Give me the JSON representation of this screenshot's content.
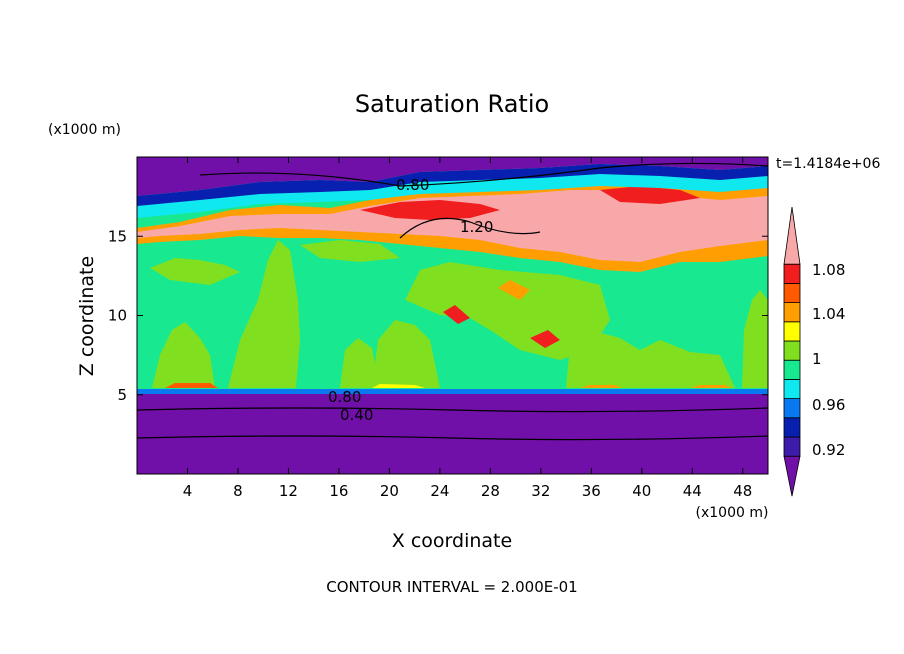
{
  "chart_data": {
    "type": "heatmap",
    "title": "Saturation Ratio",
    "xlabel": "X coordinate",
    "ylabel": "Z coordinate",
    "x_unit": "(x1000 m)",
    "y_unit": "(x1000 m)",
    "time_label": "t=1.4184e+06",
    "footer": "CONTOUR INTERVAL = 2.000E-01",
    "xlim": [
      0,
      50
    ],
    "ylim": [
      0,
      20
    ],
    "x_ticks": [
      4,
      8,
      12,
      16,
      20,
      24,
      28,
      32,
      36,
      40,
      44,
      48
    ],
    "y_ticks": [
      5,
      10,
      15
    ],
    "contour_labels": [
      "0.80",
      "1.20",
      "0.80",
      "0.40"
    ],
    "colorbar": {
      "labels": [
        "1.08",
        "1.04",
        "1",
        "0.96",
        "0.92"
      ],
      "colors": [
        "#7010a8",
        "#3c1ca8",
        "#0820b0",
        "#0a78f0",
        "#10e8f0",
        "#18e890",
        "#80e020",
        "#ffff00",
        "#ff9e00",
        "#ff5a00",
        "#f01e1e",
        "#f8a8a8"
      ]
    }
  }
}
